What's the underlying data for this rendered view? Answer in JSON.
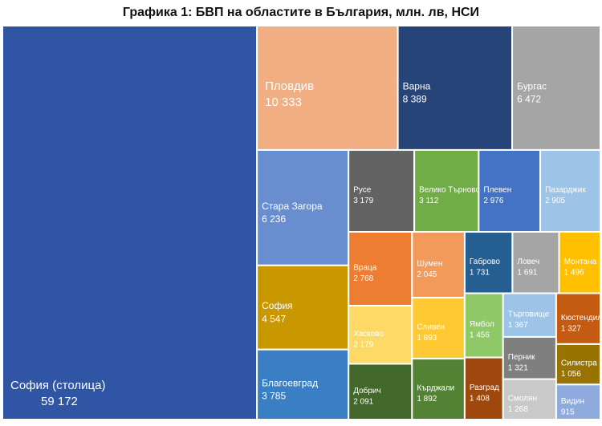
{
  "chart_data": {
    "type": "treemap",
    "title": "Графика 1: БВП на областите в България, млн. лв, НСИ",
    "categories": [
      "София (столица)",
      "Пловдив",
      "Варна",
      "Бургас",
      "Стара Загора",
      "София",
      "Благоевград",
      "Русе",
      "Велико Търново",
      "Плевен",
      "Пазарджик",
      "Враца",
      "Хасково",
      "Добрич",
      "Шумен",
      "Сливен",
      "Кърджали",
      "Габрово",
      "Ловеч",
      "Монтана",
      "Ямбол",
      "Разград",
      "Търговище",
      "Кюстендил",
      "Перник",
      "Смолян",
      "Силистра",
      "Видин"
    ],
    "values": [
      59172,
      10333,
      8389,
      6472,
      6236,
      4547,
      3785,
      3179,
      3112,
      2976,
      2905,
      2768,
      2179,
      2091,
      2045,
      1893,
      1892,
      1731,
      1691,
      1496,
      1456,
      1408,
      1367,
      1327,
      1321,
      1268,
      1056,
      915
    ],
    "value_labels": [
      "59 172",
      "10 333",
      "8 389",
      "6 472",
      "6 236",
      "4 547",
      "3 785",
      "3 179",
      "3 112",
      "2 976",
      "2 905",
      "2 768",
      "2 179",
      "2 091",
      "2 045",
      "1 893",
      "1 892",
      "1 731",
      "1 691",
      "1 496",
      "1 456",
      "1 408",
      "1 367",
      "1 327",
      "1 321",
      "1 268",
      "1 056",
      "915"
    ],
    "colors": [
      "#2f55a4",
      "#f0ae82",
      "#264478",
      "#a5a5a5",
      "#698ed0",
      "#c99700",
      "#3a7fc4",
      "#636363",
      "#70ad47",
      "#4472c4",
      "#9dc3e6",
      "#ed7d31",
      "#ffd966",
      "#43682b",
      "#f19a5a",
      "#ffc933",
      "#548235",
      "#255e91",
      "#a5a5a5",
      "#ffc000",
      "#8fc866",
      "#9e480e",
      "#9dc3e6",
      "#c55a11",
      "#7f7f7f",
      "#c9c9c9",
      "#997300",
      "#8faadc"
    ]
  }
}
